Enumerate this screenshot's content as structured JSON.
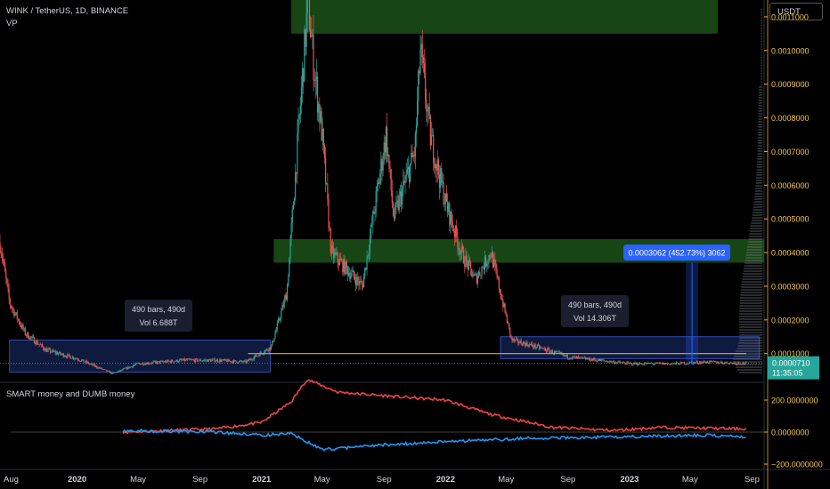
{
  "header": {
    "symbol": "WINK / TetherUS, 1D, BINANCE",
    "indicator": "VP"
  },
  "currency_button": "USDT",
  "price_tag": {
    "price": "0.0000710",
    "countdown": "11:35:05",
    "color": "#26a69a"
  },
  "measure_label": "0.0003062 (452.73%) 3062",
  "range_boxes": [
    {
      "bars": "490 bars, 490d",
      "vol": "Vol 6.688T"
    },
    {
      "bars": "490 bars, 490d",
      "vol": "Vol 14.306T"
    }
  ],
  "sub_indicator": {
    "title": "SMART money and DUMB money"
  },
  "colors": {
    "up": "#26a69a",
    "down": "#ef5350",
    "zone": "#1f5c1a",
    "range": "#1e3a8a",
    "smart": "#ef4444",
    "dumb": "#2196f3",
    "level": "#f5a623"
  },
  "chart_data": {
    "type": "candlestick",
    "title": "WINK / TetherUS, 1D, BINANCE",
    "x_tick_labels": [
      "Aug",
      "2020",
      "May",
      "Sep",
      "2021",
      "May",
      "Sep",
      "2022",
      "May",
      "Sep",
      "2023",
      "May",
      "Sep"
    ],
    "y_tick_labels": [
      "0.0011000",
      "0.0010000",
      "0.0009000",
      "0.0008000",
      "0.0007000",
      "0.0006000",
      "0.0005000",
      "0.0004000",
      "0.0003000",
      "0.0002000",
      "0.0001000"
    ],
    "ylim": [
      2e-05,
      0.00115
    ],
    "x_range": [
      "2019-08-01",
      "2023-09-25"
    ],
    "price_path": [
      [
        "2019-08-01",
        0.00043
      ],
      [
        "2019-08-20",
        0.00025
      ],
      [
        "2019-09-20",
        0.00016
      ],
      [
        "2019-11-01",
        0.00011
      ],
      [
        "2020-01-01",
        8.5e-05
      ],
      [
        "2020-03-12",
        4e-05
      ],
      [
        "2020-05-01",
        7e-05
      ],
      [
        "2020-08-01",
        8e-05
      ],
      [
        "2020-10-01",
        8e-05
      ],
      [
        "2020-12-01",
        7.5e-05
      ],
      [
        "2021-01-20",
        0.00012
      ],
      [
        "2021-02-20",
        0.00028
      ],
      [
        "2021-04-03",
        0.00115
      ],
      [
        "2021-04-15",
        0.00095
      ],
      [
        "2021-05-01",
        0.00075
      ],
      [
        "2021-05-19",
        0.0004
      ],
      [
        "2021-07-20",
        0.0003
      ],
      [
        "2021-09-05",
        0.00075
      ],
      [
        "2021-09-20",
        0.0005
      ],
      [
        "2021-11-01",
        0.0007
      ],
      [
        "2021-11-12",
        0.001
      ],
      [
        "2021-12-01",
        0.00075
      ],
      [
        "2022-01-01",
        0.00055
      ],
      [
        "2022-02-01",
        0.0004
      ],
      [
        "2022-03-01",
        0.00032
      ],
      [
        "2022-04-01",
        0.0004
      ],
      [
        "2022-05-12",
        0.00014
      ],
      [
        "2022-07-01",
        0.00012
      ],
      [
        "2022-09-01",
        9e-05
      ],
      [
        "2023-01-01",
        7e-05
      ],
      [
        "2023-04-01",
        7e-05
      ],
      [
        "2023-06-01",
        7.5e-05
      ],
      [
        "2023-08-20",
        7.1e-05
      ]
    ],
    "last_price": 7.1e-05,
    "zones": [
      {
        "from": "2021-03-01",
        "to": "2023-06-25",
        "low": 0.00105,
        "high": 0.00115
      },
      {
        "from": "2021-01-25",
        "to": "2023-09-25",
        "low": 0.00037,
        "high": 0.00044
      }
    ],
    "ranges": [
      {
        "from": "2019-08-20",
        "to": "2021-01-18",
        "low": 4.5e-05,
        "high": 0.00014,
        "bars": 490,
        "vol": "6.688T"
      },
      {
        "from": "2022-04-20",
        "to": "2023-09-15",
        "low": 8.5e-05,
        "high": 0.00015,
        "bars": 490,
        "vol": "14.306T"
      }
    ],
    "horizontal_level": 0.0001,
    "measure": {
      "date": "2023-05-05",
      "low": 6.8e-05,
      "high": 0.00037,
      "change": "0.0003062",
      "percent": "452.73%",
      "ticks": "3062"
    },
    "indicator": {
      "name": "SMART money and DUMB money",
      "y_tick_labels": [
        "200.0000000",
        "0.0000000",
        "−200.0000000"
      ],
      "ylim": [
        -200,
        300
      ],
      "series": [
        {
          "name": "SMART money",
          "color": "#ef4444",
          "points": [
            [
              "2020-04-01",
              0
            ],
            [
              "2020-10-01",
              20
            ],
            [
              "2021-01-01",
              60
            ],
            [
              "2021-03-01",
              190
            ],
            [
              "2021-04-01",
              330
            ],
            [
              "2021-06-01",
              250
            ],
            [
              "2021-10-01",
              220
            ],
            [
              "2022-01-01",
              200
            ],
            [
              "2022-04-01",
              110
            ],
            [
              "2022-08-01",
              30
            ],
            [
              "2022-12-01",
              10
            ],
            [
              "2023-03-01",
              30
            ],
            [
              "2023-08-20",
              20
            ]
          ]
        },
        {
          "name": "DUMB money",
          "color": "#2196f3",
          "points": [
            [
              "2020-04-01",
              10
            ],
            [
              "2020-10-01",
              0
            ],
            [
              "2021-01-01",
              -20
            ],
            [
              "2021-03-01",
              -10
            ],
            [
              "2021-05-01",
              -110
            ],
            [
              "2021-09-01",
              -80
            ],
            [
              "2022-01-01",
              -60
            ],
            [
              "2022-06-01",
              -40
            ],
            [
              "2022-12-01",
              -30
            ],
            [
              "2023-06-01",
              -20
            ],
            [
              "2023-08-20",
              -30
            ]
          ]
        }
      ]
    }
  }
}
